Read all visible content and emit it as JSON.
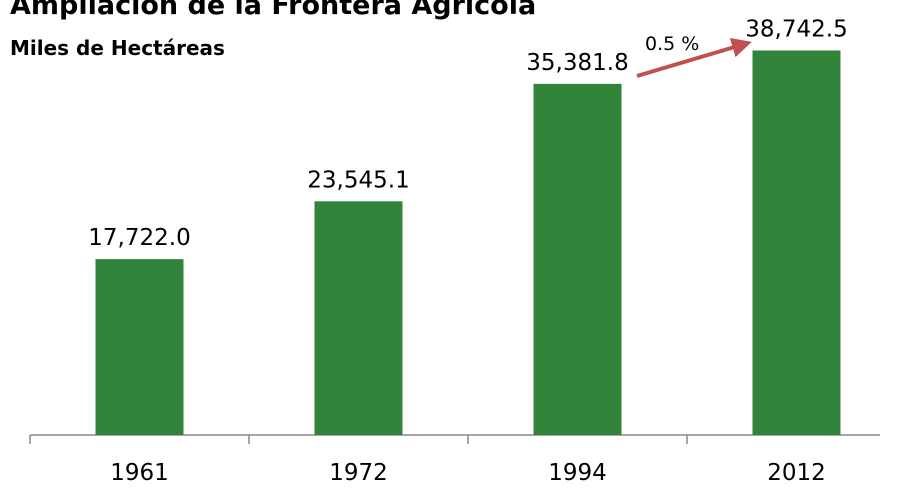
{
  "chart_data": {
    "type": "bar",
    "title": "Ampliación de la Frontera Agrícola",
    "subtitle": "Miles de Hectáreas",
    "categories": [
      "1961",
      "1972",
      "1994",
      "2012"
    ],
    "values": [
      17722.0,
      23545.1,
      35381.8,
      38742.5
    ],
    "value_labels": [
      "17,722.0",
      "23,545.1",
      "35,381.8",
      "38,742.5"
    ],
    "color": "#31843a",
    "ylim": [
      0,
      40000
    ],
    "annotation": "0.5 %"
  }
}
